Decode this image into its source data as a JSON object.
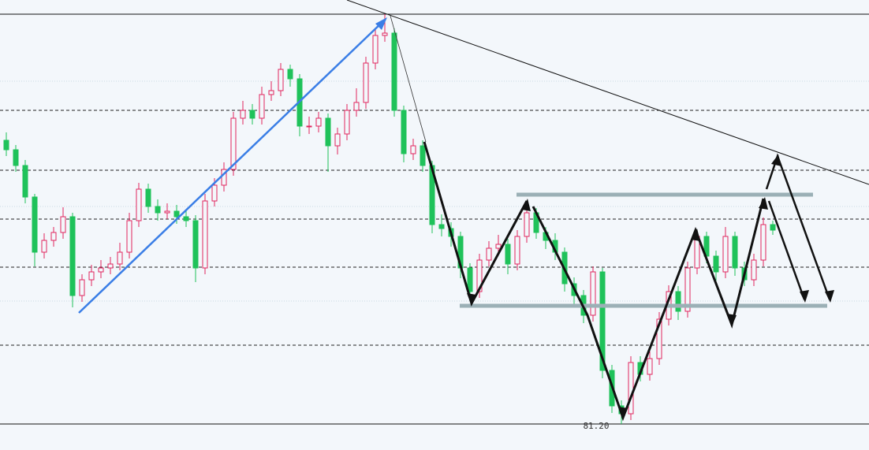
{
  "chart_data": {
    "type": "candlestick",
    "open": [
      84.8,
      84.68,
      84.48,
      84.08,
      83.38,
      83.53,
      83.63,
      83.83,
      82.83,
      83.03,
      83.13,
      83.18,
      83.23,
      83.38,
      83.78,
      84.18,
      83.96,
      83.88,
      83.9,
      83.83,
      83.78,
      83.18,
      84.03,
      84.23,
      84.43,
      85.08,
      85.18,
      85.08,
      85.38,
      85.43,
      85.7,
      85.58,
      84.98,
      84.98,
      85.08,
      84.73,
      84.88,
      85.18,
      85.28,
      85.78,
      86.13,
      86.16,
      85.18,
      84.63,
      84.73,
      84.48,
      83.73,
      83.68,
      83.58,
      83.18,
      82.88,
      83.28,
      83.43,
      83.48,
      83.23,
      83.58,
      83.88,
      83.63,
      83.53,
      83.38,
      82.98,
      82.83,
      82.58,
      83.13,
      81.88,
      81.43,
      81.33,
      81.98,
      81.83,
      82.03,
      82.53,
      82.88,
      82.63,
      83.18,
      83.58,
      83.33,
      83.13,
      83.58,
      83.18,
      83.03,
      83.28,
      83.73
    ],
    "high": [
      84.9,
      84.74,
      84.55,
      84.12,
      83.62,
      83.7,
      83.95,
      83.88,
      83.1,
      83.22,
      83.28,
      83.32,
      83.5,
      83.88,
      84.26,
      84.25,
      84.05,
      84.0,
      83.98,
      83.92,
      83.85,
      84.12,
      84.32,
      84.52,
      85.16,
      85.3,
      85.26,
      85.48,
      85.55,
      85.78,
      85.76,
      85.64,
      85.1,
      85.16,
      85.14,
      84.96,
      85.26,
      85.46,
      85.86,
      86.22,
      86.4,
      86.22,
      85.24,
      84.82,
      84.8,
      84.54,
      83.86,
      83.76,
      83.64,
      83.24,
      83.36,
      83.52,
      83.6,
      83.55,
      83.66,
      83.96,
      83.94,
      83.7,
      83.62,
      83.44,
      83.06,
      82.9,
      83.2,
      83.18,
      81.95,
      81.5,
      82.06,
      82.06,
      82.12,
      82.62,
      82.96,
      82.95,
      83.26,
      83.66,
      83.64,
      83.4,
      83.7,
      83.64,
      83.26,
      83.36,
      83.82,
      83.78
    ],
    "low": [
      84.6,
      84.4,
      84.0,
      83.2,
      83.3,
      83.45,
      83.55,
      82.68,
      82.75,
      82.95,
      83.05,
      83.1,
      83.15,
      83.3,
      83.7,
      83.88,
      83.78,
      83.8,
      83.74,
      83.7,
      83.0,
      83.1,
      83.96,
      84.15,
      84.35,
      85.0,
      85.0,
      85.0,
      85.3,
      85.36,
      85.48,
      84.85,
      84.88,
      84.9,
      84.4,
      84.62,
      84.8,
      85.1,
      85.2,
      85.7,
      86.05,
      85.1,
      84.52,
      84.55,
      84.4,
      83.62,
      83.58,
      83.45,
      83.05,
      82.8,
      82.8,
      83.2,
      83.35,
      83.1,
      83.15,
      83.5,
      83.55,
      83.42,
      83.28,
      82.88,
      82.72,
      82.48,
      82.5,
      81.78,
      81.34,
      81.2,
      81.25,
      81.74,
      81.75,
      81.95,
      82.45,
      82.52,
      82.55,
      83.1,
      83.24,
      83.02,
      83.05,
      83.08,
      82.95,
      82.95,
      83.2,
      83.6
    ],
    "close": [
      84.68,
      84.48,
      84.08,
      83.38,
      83.53,
      83.63,
      83.83,
      82.83,
      83.03,
      83.13,
      83.18,
      83.23,
      83.38,
      83.78,
      84.18,
      83.96,
      83.88,
      83.9,
      83.83,
      83.78,
      83.18,
      84.03,
      84.23,
      84.43,
      85.08,
      85.18,
      85.08,
      85.38,
      85.43,
      85.7,
      85.58,
      84.98,
      84.98,
      85.08,
      84.73,
      84.88,
      85.18,
      85.28,
      85.78,
      86.13,
      86.16,
      85.18,
      84.63,
      84.73,
      84.48,
      83.73,
      83.68,
      83.58,
      83.18,
      82.88,
      83.28,
      83.43,
      83.48,
      83.23,
      83.58,
      83.88,
      83.63,
      83.53,
      83.38,
      82.98,
      82.83,
      82.58,
      83.13,
      81.88,
      81.43,
      81.33,
      81.98,
      81.83,
      82.03,
      82.53,
      82.88,
      82.63,
      83.18,
      83.58,
      83.33,
      83.13,
      83.58,
      83.18,
      83.03,
      83.28,
      83.73,
      83.66
    ],
    "up_color": "#e0245e",
    "down_color": "#1fc25a",
    "ylim": [
      80.87,
      86.58
    ],
    "solid_levels": [
      86.4,
      81.2
    ],
    "dashed_levels": [
      85.18,
      84.42,
      83.8,
      83.19,
      82.2
    ],
    "dotted_levels": [
      85.55,
      83.96,
      82.76
    ],
    "annotation": {
      "value": 81.2,
      "label": "81.20"
    }
  }
}
